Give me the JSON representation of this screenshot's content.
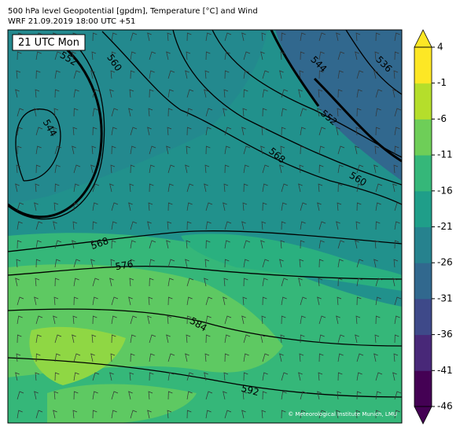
{
  "header": {
    "title": "500 hPa level Geopotential [gpdm], Temperature [°C] and Wind",
    "subtitle": "WRF 21.09.2019 18:00 UTC +51"
  },
  "map": {
    "time_label": "21 UTC Mon",
    "contour_labels": [
      "552",
      "560",
      "544",
      "544",
      "536",
      "552",
      "568",
      "560",
      "568",
      "576",
      "584",
      "592"
    ],
    "credit": "© Meteorological Institute Munich, LMU"
  },
  "colorbar": {
    "lim": [
      -46,
      4
    ],
    "ticks": [
      4,
      -1,
      -6,
      -11,
      -16,
      -21,
      -26,
      -31,
      -36,
      -41,
      -46
    ],
    "colors": [
      "#440154",
      "#482878",
      "#3e4989",
      "#31688e",
      "#26828e",
      "#1f9e89",
      "#35b779",
      "#6ece58",
      "#b5de2b",
      "#fde725"
    ]
  }
}
